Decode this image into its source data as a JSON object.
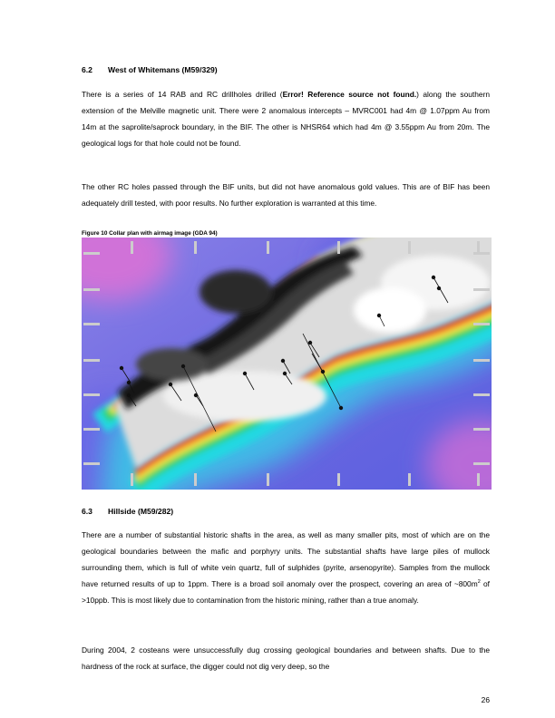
{
  "section_6_2": {
    "number": "6.2",
    "title": "West of Whitemans (M59/329)",
    "para1_a": "There is a series of 14 RAB and RC drillholes drilled (",
    "para1_ref": "Error! Reference source not found.",
    "para1_b": ") along the southern extension of the Melville magnetic unit.  There were 2 anomalous intercepts – MVRC001 had 4m @ 1.07ppm Au from 14m at the saprolite/saprock boundary, in the BIF.  The other is NHSR64 which had 4m @ 3.55ppm Au from 20m.  The geological logs for that hole could not be found.",
    "para2": "The other RC holes passed through the BIF units, but did not have anomalous gold values.  This are of BIF has been adequately drill tested, with poor results.  No further exploration is warranted at this time."
  },
  "figure": {
    "caption": "Figure 10 Collar plan with airmag image (GDA 94)",
    "colors": {
      "magenta": "#e24bd6",
      "blue": "#4a52e6",
      "cyan": "#22d8e2",
      "green": "#2fd05a",
      "yellow": "#f3f04a",
      "orange": "#f58a2a",
      "red": "#e32622",
      "dark": "#151515",
      "light_grey": "#dcdcdc"
    }
  },
  "section_6_3": {
    "number": "6.3",
    "title": "Hillside (M59/282)",
    "para1_a": "There are a number of substantial historic shafts in the area, as well as many smaller pits, most of which are on the geological boundaries between the mafic and porphyry units.  The substantial shafts have large piles of mullock surrounding them, which is full of white vein quartz, full of sulphides (pyrite, arsenopyrite).  Samples from the mullock have returned results of up to 1ppm.  There is a broad soil anomaly over the prospect, covering an area of ~800m",
    "para1_sup": "2",
    "para1_b": " of >10ppb.  This is most likely due to contamination from the historic mining, rather than a true anomaly.",
    "para2": "During 2004, 2 costeans were unsuccessfully dug crossing geological boundaries and between shafts.  Due to the hardness of the rock at surface, the digger could not dig very deep, so the"
  },
  "page_number": "26"
}
